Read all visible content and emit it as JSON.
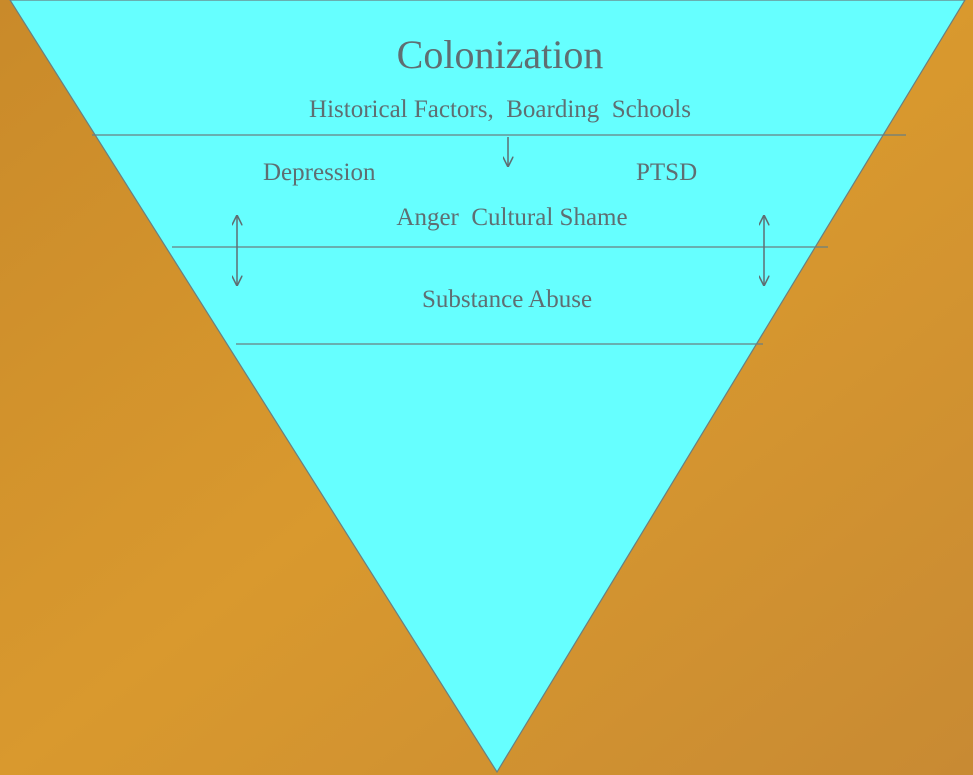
{
  "title": "Colonization",
  "subtitle": "Historical Factors,  Boarding  Schools",
  "layers": [
    {
      "items": [
        "Depression",
        "PTSD",
        "Anger  Cultural Shame"
      ]
    },
    {
      "items": [
        "Substance Abuse"
      ]
    }
  ]
}
